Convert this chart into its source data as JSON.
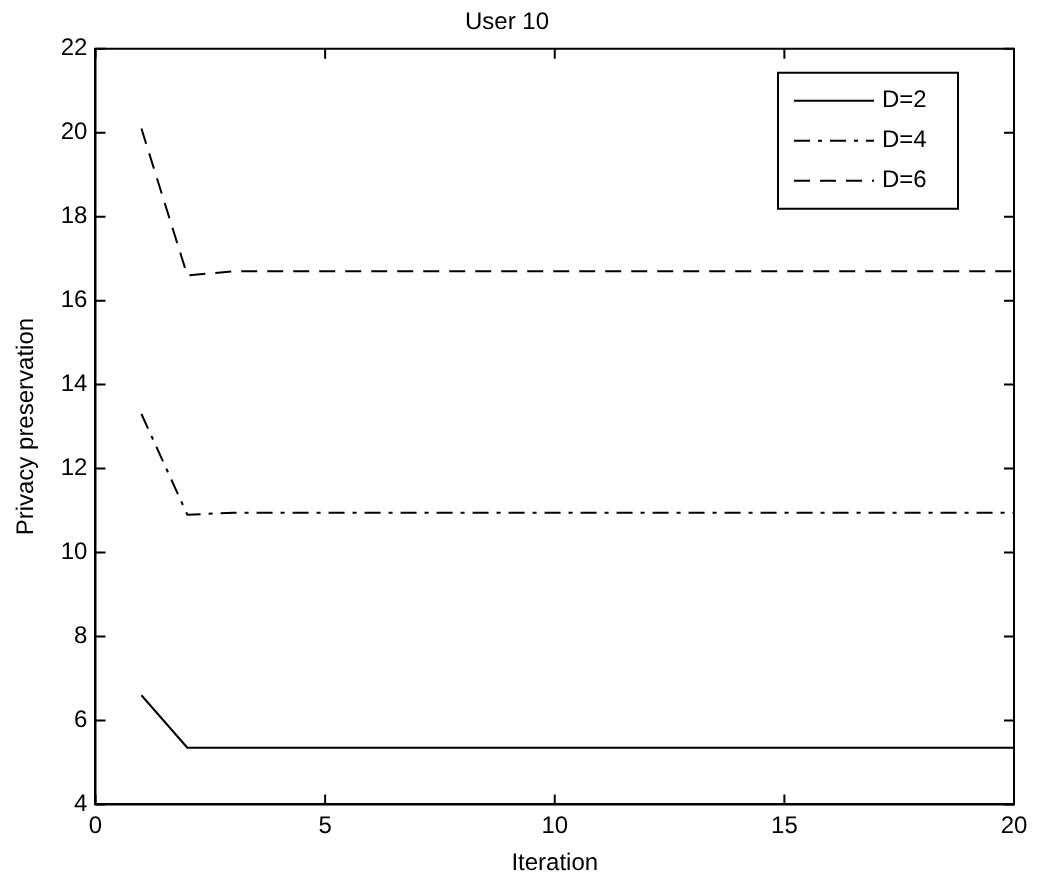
{
  "chart_data": {
    "type": "line",
    "title": "User 10",
    "xlabel": "Iteration",
    "ylabel": "Privacy preservation",
    "x": [
      1,
      2,
      3,
      4,
      5,
      6,
      7,
      8,
      9,
      10,
      11,
      12,
      13,
      14,
      15,
      16,
      17,
      18,
      19,
      20
    ],
    "series": [
      {
        "name": "D=2",
        "color": "#000000",
        "line_style": "solid",
        "values": [
          6.6,
          5.35,
          5.35,
          5.35,
          5.35,
          5.35,
          5.35,
          5.35,
          5.35,
          5.35,
          5.35,
          5.35,
          5.35,
          5.35,
          5.35,
          5.35,
          5.35,
          5.35,
          5.35,
          5.35
        ]
      },
      {
        "name": "D=4",
        "color": "#000000",
        "line_style": "dashdot",
        "values": [
          13.3,
          10.9,
          10.95,
          10.95,
          10.95,
          10.95,
          10.95,
          10.95,
          10.95,
          10.95,
          10.95,
          10.95,
          10.95,
          10.95,
          10.95,
          10.95,
          10.95,
          10.95,
          10.95,
          10.95
        ]
      },
      {
        "name": "D=6",
        "color": "#000000",
        "line_style": "dashed",
        "values": [
          20.1,
          16.6,
          16.7,
          16.7,
          16.7,
          16.7,
          16.7,
          16.7,
          16.7,
          16.7,
          16.7,
          16.7,
          16.7,
          16.7,
          16.7,
          16.7,
          16.7,
          16.7,
          16.7,
          16.7
        ]
      }
    ],
    "xlim": [
      0,
      20
    ],
    "xticks": [
      0,
      5,
      10,
      15,
      20
    ],
    "ylim": [
      4,
      22
    ],
    "yticks": [
      4,
      6,
      8,
      10,
      12,
      14,
      16,
      18,
      20,
      22
    ],
    "grid": false,
    "legend": "top right",
    "marker": "none"
  }
}
